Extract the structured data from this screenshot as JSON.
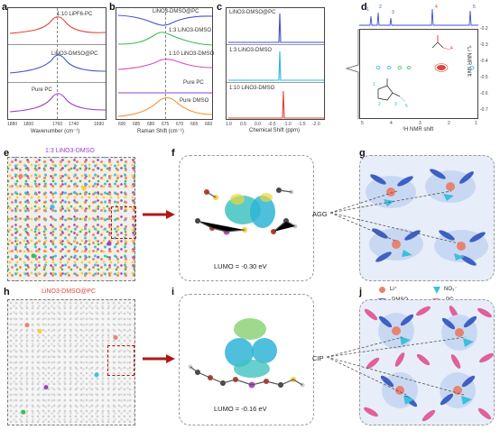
{
  "panels": {
    "a": {
      "label": "a",
      "traces": [
        "1:10 LiPF6-PC",
        "LiNO3-DMSO@PC",
        "Pure PC"
      ],
      "xlabel": "Wavenumber (cm⁻¹)",
      "xticks": [
        "1880",
        "1800",
        "1800",
        "1760",
        "1740",
        "1720",
        "1690"
      ]
    },
    "b": {
      "label": "b",
      "traces": [
        "LiNO3-DMSO@PC",
        "1:3 LiNO3-DMSO",
        "1:10 LiNO3-DMSO",
        "Pure PC",
        "Pure DMSO"
      ],
      "xlabel": "Raman Shift (cm⁻¹)",
      "xticks": [
        "690",
        "685",
        "680",
        "675",
        "670",
        "665",
        "660"
      ]
    },
    "c": {
      "label": "c",
      "traces": [
        "LiNO3-DMSO@PC",
        "1:3 LiNO3-DMSO",
        "1:10 LiNO3-DMSO"
      ],
      "xlabel": "Chemical Shift (ppm)",
      "xticks": [
        "1.0",
        "0.5",
        "0.0",
        "-0.5",
        "-1.0",
        "-1.5",
        "-2.0"
      ]
    },
    "d": {
      "label": "d",
      "top_peaks": [
        "1",
        "2",
        "3",
        "4",
        "5"
      ],
      "xlabel": "¹H NMR shift",
      "ylabel": "⁷Li NMR shift",
      "xticks": [
        "5",
        "4",
        "3",
        "2",
        "1"
      ],
      "yticks": [
        "-0.2",
        "-0.3",
        "-0.4",
        "-0.5",
        "-0.6",
        "-0.7"
      ],
      "mol_labels": [
        "1",
        "2",
        "3",
        "4",
        "5"
      ]
    },
    "e": {
      "label": "e",
      "title": "1:3 LiNO3-DMSO"
    },
    "f": {
      "label": "f",
      "lumo": "LUMO = -0.30 eV"
    },
    "g": {
      "label": "g",
      "tag": "AGG"
    },
    "h": {
      "label": "h",
      "title": "LiNO3-DMSO@PC"
    },
    "i": {
      "label": "i",
      "lumo": "LUMO = -0.16 eV"
    },
    "j": {
      "label": "j",
      "tag": "CIP"
    }
  },
  "legend": {
    "items": [
      {
        "name": "Li⁺",
        "color": "#e8836f"
      },
      {
        "name": "NO₃⁻",
        "color": "#3cc0dc"
      },
      {
        "name": "DMSO",
        "color": "#3e5fc4"
      },
      {
        "name": "PC",
        "color": "#e0609a"
      }
    ]
  },
  "colors": {
    "red": "#e0453c",
    "blue": "#3f4fd0",
    "purple": "#9a3fc8",
    "green": "#3dbb55",
    "pink": "#d94fb5",
    "orange": "#f29030",
    "cyan": "#2ab7dc",
    "arrow": "#b01818"
  }
}
